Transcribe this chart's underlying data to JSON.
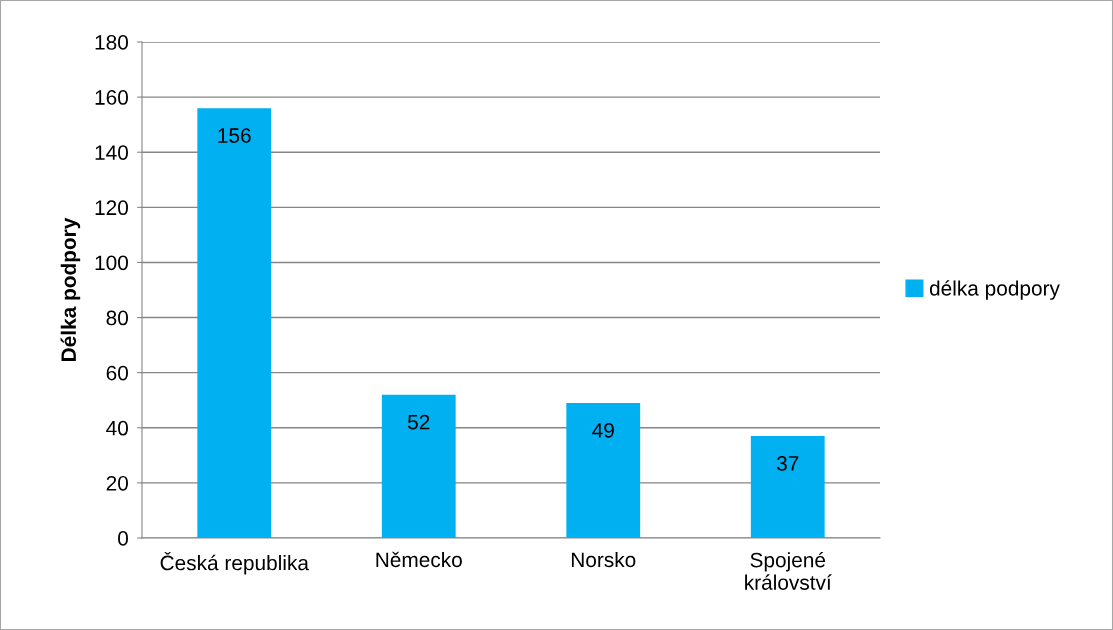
{
  "chart_data": {
    "type": "bar",
    "ylabel": "Délka podpory",
    "categories": [
      "Česká republika",
      "Německo",
      "Norsko",
      "Spojené\nkrálovství"
    ],
    "series": [
      {
        "name": "délka podpory",
        "color": "#00b0f0",
        "values": [
          156,
          52,
          49,
          37
        ]
      }
    ],
    "ylim": [
      0,
      180
    ],
    "yticks": [
      0,
      20,
      40,
      60,
      80,
      100,
      120,
      140,
      160,
      180
    ],
    "grid": "y",
    "legend": "right",
    "data_labels": true
  }
}
